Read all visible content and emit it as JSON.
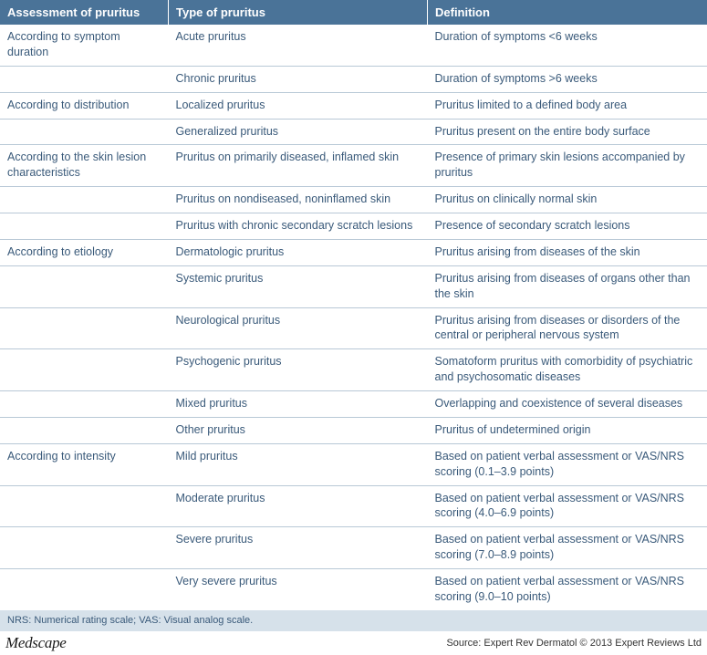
{
  "colors": {
    "header_bg": "#4a7398",
    "header_text": "#ffffff",
    "body_text": "#3a5a7a",
    "row_border": "#b8c8d6",
    "footnote_bg": "#d6e1ea",
    "footer_text": "#333333"
  },
  "columns": {
    "assessment": "Assessment of pruritus",
    "type": "Type of pruritus",
    "definition": "Definition"
  },
  "rows": [
    {
      "a": "According to symptom duration",
      "t": "Acute pruritus",
      "d": "Duration of symptoms <6 weeks"
    },
    {
      "a": "",
      "t": "Chronic pruritus",
      "d": "Duration of symptoms >6 weeks"
    },
    {
      "a": "According to distribution",
      "t": "Localized pruritus",
      "d": "Pruritus limited to a defined body area"
    },
    {
      "a": "",
      "t": "Generalized pruritus",
      "d": "Pruritus present on the entire body surface"
    },
    {
      "a": "According to the skin lesion characteristics",
      "t": "Pruritus on primarily diseased, inflamed skin",
      "d": "Presence of primary skin lesions accompanied by pruritus"
    },
    {
      "a": "",
      "t": "Pruritus on nondiseased, noninflamed skin",
      "d": "Pruritus on clinically normal skin"
    },
    {
      "a": "",
      "t": "Pruritus with chronic secondary scratch lesions",
      "d": "Presence of secondary scratch lesions"
    },
    {
      "a": "According to etiology",
      "t": "Dermatologic pruritus",
      "d": "Pruritus arising from diseases of the skin"
    },
    {
      "a": "",
      "t": "Systemic pruritus",
      "d": "Pruritus arising from diseases of organs other than the skin"
    },
    {
      "a": "",
      "t": "Neurological pruritus",
      "d": "Pruritus arising from diseases or disorders of the central or peripheral nervous system"
    },
    {
      "a": "",
      "t": "Psychogenic pruritus",
      "d": "Somatoform pruritus with comorbidity of psychiatric and psychosomatic diseases"
    },
    {
      "a": "",
      "t": "Mixed pruritus",
      "d": "Overlapping and coexistence of several diseases"
    },
    {
      "a": "",
      "t": "Other pruritus",
      "d": "Pruritus of undetermined origin"
    },
    {
      "a": "According to intensity",
      "t": "Mild pruritus",
      "d": "Based on patient verbal assessment or VAS/NRS scoring (0.1–3.9 points)"
    },
    {
      "a": "",
      "t": "Moderate pruritus",
      "d": "Based on patient verbal assessment or VAS/NRS scoring (4.0–6.9 points)"
    },
    {
      "a": "",
      "t": "Severe pruritus",
      "d": "Based on patient verbal assessment or VAS/NRS scoring (7.0–8.9 points)"
    },
    {
      "a": "",
      "t": "Very severe pruritus",
      "d": "Based on patient verbal assessment or VAS/NRS scoring (9.0–10 points)"
    }
  ],
  "footnote": "NRS: Numerical rating scale; VAS: Visual analog scale.",
  "footer": {
    "brand": "Medscape",
    "source": "Source: Expert Rev Dermatol © 2013 Expert Reviews Ltd"
  }
}
